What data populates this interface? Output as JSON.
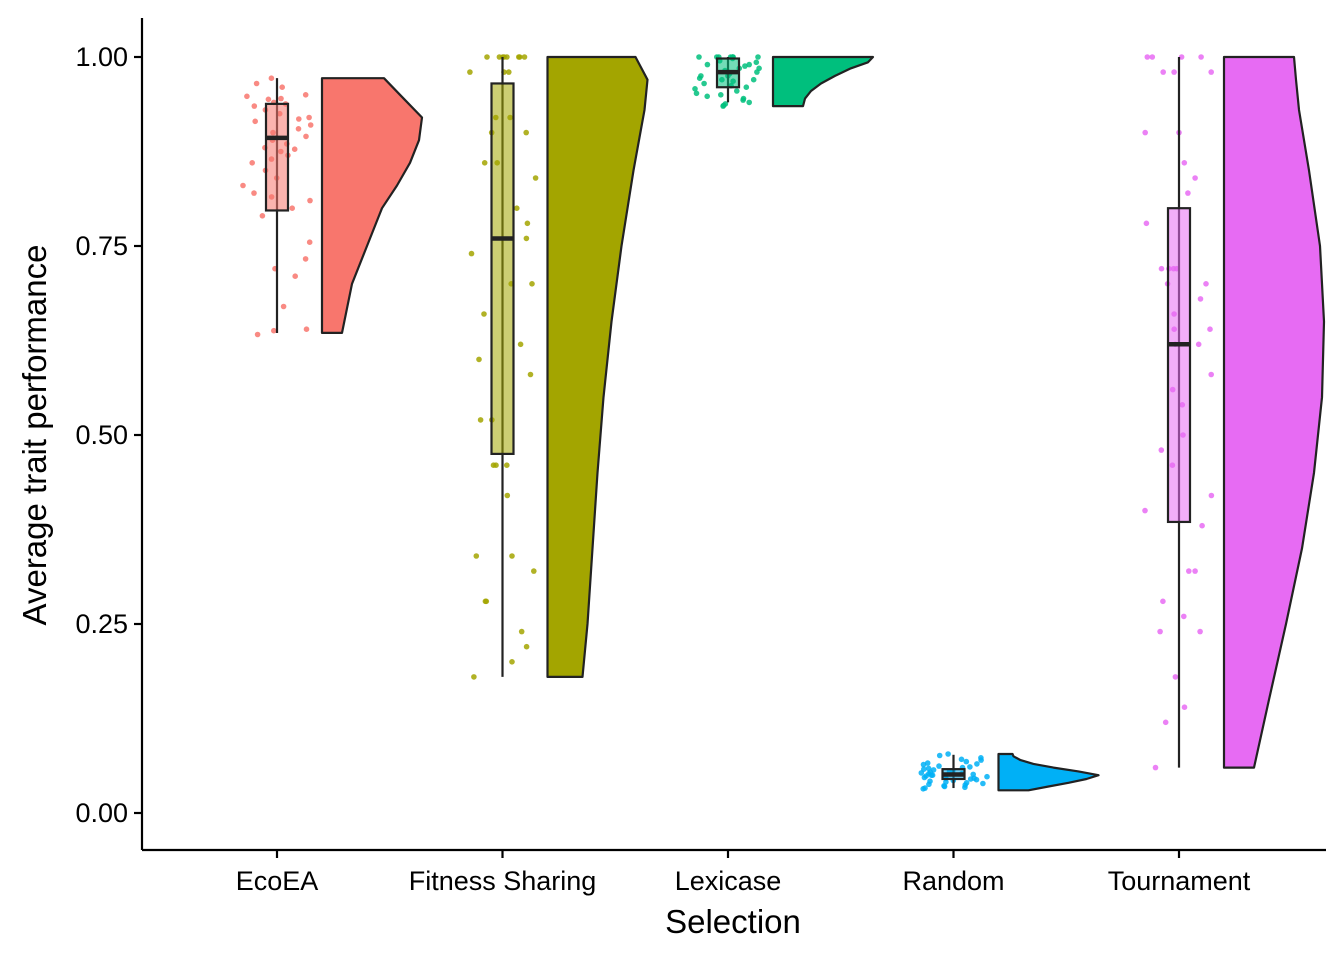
{
  "chart_data": {
    "type": "raincloud",
    "xlabel": "Selection",
    "ylabel": "Average trait performance",
    "ylim": [
      -0.05,
      1.05
    ],
    "yticks": [
      "0.00",
      "0.25",
      "0.50",
      "0.75",
      "1.00"
    ],
    "ytick_values": [
      0,
      0.25,
      0.5,
      0.75,
      1.0
    ],
    "categories": [
      "EcoEA",
      "Fitness Sharing",
      "Lexicase",
      "Random",
      "Tournament"
    ],
    "grid": false,
    "series": [
      {
        "category": "EcoEA",
        "fill": "#F8766D",
        "box": {
          "whisker_low": 0.635,
          "q1": 0.797,
          "median": 0.893,
          "q3": 0.938,
          "whisker_high": 0.972
        },
        "density": {
          "y": [
            0.635,
            0.7,
            0.75,
            0.8,
            0.83,
            0.86,
            0.89,
            0.92,
            0.95,
            0.972
          ],
          "w": [
            0.2,
            0.3,
            0.45,
            0.6,
            0.75,
            0.88,
            0.97,
            1.0,
            0.78,
            0.62
          ]
        },
        "points": [
          0.95,
          0.948,
          0.945,
          0.944,
          0.94,
          0.938,
          0.935,
          0.93,
          0.925,
          0.92,
          0.918,
          0.915,
          0.91,
          0.905,
          0.9,
          0.895,
          0.89,
          0.885,
          0.88,
          0.878,
          0.875,
          0.87,
          0.865,
          0.86,
          0.85,
          0.84,
          0.83,
          0.82,
          0.815,
          0.81,
          0.8,
          0.79,
          0.972,
          0.965,
          0.96,
          0.755,
          0.733,
          0.72,
          0.71,
          0.67,
          0.64,
          0.638,
          0.633
        ]
      },
      {
        "category": "Fitness Sharing",
        "fill": "#A3A500",
        "box": {
          "whisker_low": 0.18,
          "q1": 0.475,
          "median": 0.76,
          "q3": 0.965,
          "whisker_high": 1.0
        },
        "density": {
          "y": [
            0.18,
            0.25,
            0.35,
            0.45,
            0.55,
            0.65,
            0.75,
            0.85,
            0.93,
            0.97,
            1.0
          ],
          "w": [
            0.35,
            0.4,
            0.45,
            0.5,
            0.56,
            0.64,
            0.74,
            0.86,
            0.97,
            1.0,
            0.88
          ]
        },
        "points": [
          1.0,
          1.0,
          1.0,
          1.0,
          1.0,
          1.0,
          1.0,
          1.0,
          0.98,
          0.98,
          0.98,
          0.92,
          0.92,
          0.9,
          0.9,
          0.86,
          0.86,
          0.84,
          0.8,
          0.78,
          0.76,
          0.74,
          0.7,
          0.7,
          0.66,
          0.62,
          0.6,
          0.58,
          0.52,
          0.52,
          0.46,
          0.46,
          0.46,
          0.42,
          0.34,
          0.34,
          0.32,
          0.28,
          0.28,
          0.24,
          0.22,
          0.2,
          0.18
        ]
      },
      {
        "category": "Lexicase",
        "fill": "#00BF7D",
        "box": {
          "whisker_low": 0.94,
          "q1": 0.96,
          "median": 0.98,
          "q3": 0.998,
          "whisker_high": 1.0
        },
        "density": {
          "y": [
            0.935,
            0.945,
            0.955,
            0.965,
            0.975,
            0.985,
            0.993,
            1.0
          ],
          "w": [
            0.3,
            0.32,
            0.38,
            0.48,
            0.62,
            0.78,
            0.95,
            1.0
          ]
        },
        "points": [
          1.0,
          1.0,
          1.0,
          1.0,
          1.0,
          1.0,
          1.0,
          1.0,
          0.998,
          0.995,
          0.993,
          0.99,
          0.99,
          0.988,
          0.985,
          0.985,
          0.982,
          0.98,
          0.98,
          0.978,
          0.975,
          0.975,
          0.972,
          0.97,
          0.97,
          0.968,
          0.965,
          0.962,
          0.96,
          0.958,
          0.955,
          0.952,
          0.95,
          0.948,
          0.945,
          0.943,
          0.94,
          0.938,
          0.936,
          0.935
        ]
      },
      {
        "category": "Random",
        "fill": "#00B0F6",
        "box": {
          "whisker_low": 0.033,
          "q1": 0.045,
          "median": 0.051,
          "q3": 0.058,
          "whisker_high": 0.077
        },
        "density": {
          "y": [
            0.03,
            0.035,
            0.04,
            0.045,
            0.05,
            0.055,
            0.06,
            0.065,
            0.07,
            0.075,
            0.078
          ],
          "w": [
            0.3,
            0.5,
            0.7,
            0.88,
            1.0,
            0.8,
            0.55,
            0.35,
            0.22,
            0.15,
            0.14
          ]
        },
        "points": [
          0.078,
          0.076,
          0.073,
          0.071,
          0.07,
          0.068,
          0.066,
          0.065,
          0.064,
          0.062,
          0.061,
          0.06,
          0.059,
          0.058,
          0.057,
          0.056,
          0.055,
          0.054,
          0.053,
          0.052,
          0.052,
          0.051,
          0.05,
          0.05,
          0.049,
          0.048,
          0.047,
          0.046,
          0.046,
          0.045,
          0.044,
          0.043,
          0.042,
          0.041,
          0.04,
          0.039,
          0.038,
          0.037,
          0.036,
          0.035,
          0.034,
          0.033,
          0.032
        ]
      },
      {
        "category": "Tournament",
        "fill": "#E76BF3",
        "box": {
          "whisker_low": 0.06,
          "q1": 0.385,
          "median": 0.62,
          "q3": 0.8,
          "whisker_high": 1.0
        },
        "density": {
          "y": [
            0.06,
            0.15,
            0.25,
            0.35,
            0.45,
            0.55,
            0.65,
            0.75,
            0.85,
            0.93,
            0.97,
            1.0
          ],
          "w": [
            0.3,
            0.45,
            0.62,
            0.78,
            0.9,
            0.98,
            1.0,
            0.96,
            0.85,
            0.75,
            0.72,
            0.7
          ]
        },
        "points": [
          1.0,
          1.0,
          1.0,
          1.0,
          0.98,
          0.98,
          0.98,
          0.9,
          0.9,
          0.86,
          0.84,
          0.82,
          0.78,
          0.72,
          0.72,
          0.72,
          0.72,
          0.7,
          0.7,
          0.68,
          0.66,
          0.64,
          0.64,
          0.62,
          0.62,
          0.58,
          0.56,
          0.54,
          0.5,
          0.48,
          0.46,
          0.42,
          0.4,
          0.38,
          0.32,
          0.32,
          0.28,
          0.26,
          0.24,
          0.24,
          0.18,
          0.14,
          0.12,
          0.06
        ]
      }
    ]
  }
}
